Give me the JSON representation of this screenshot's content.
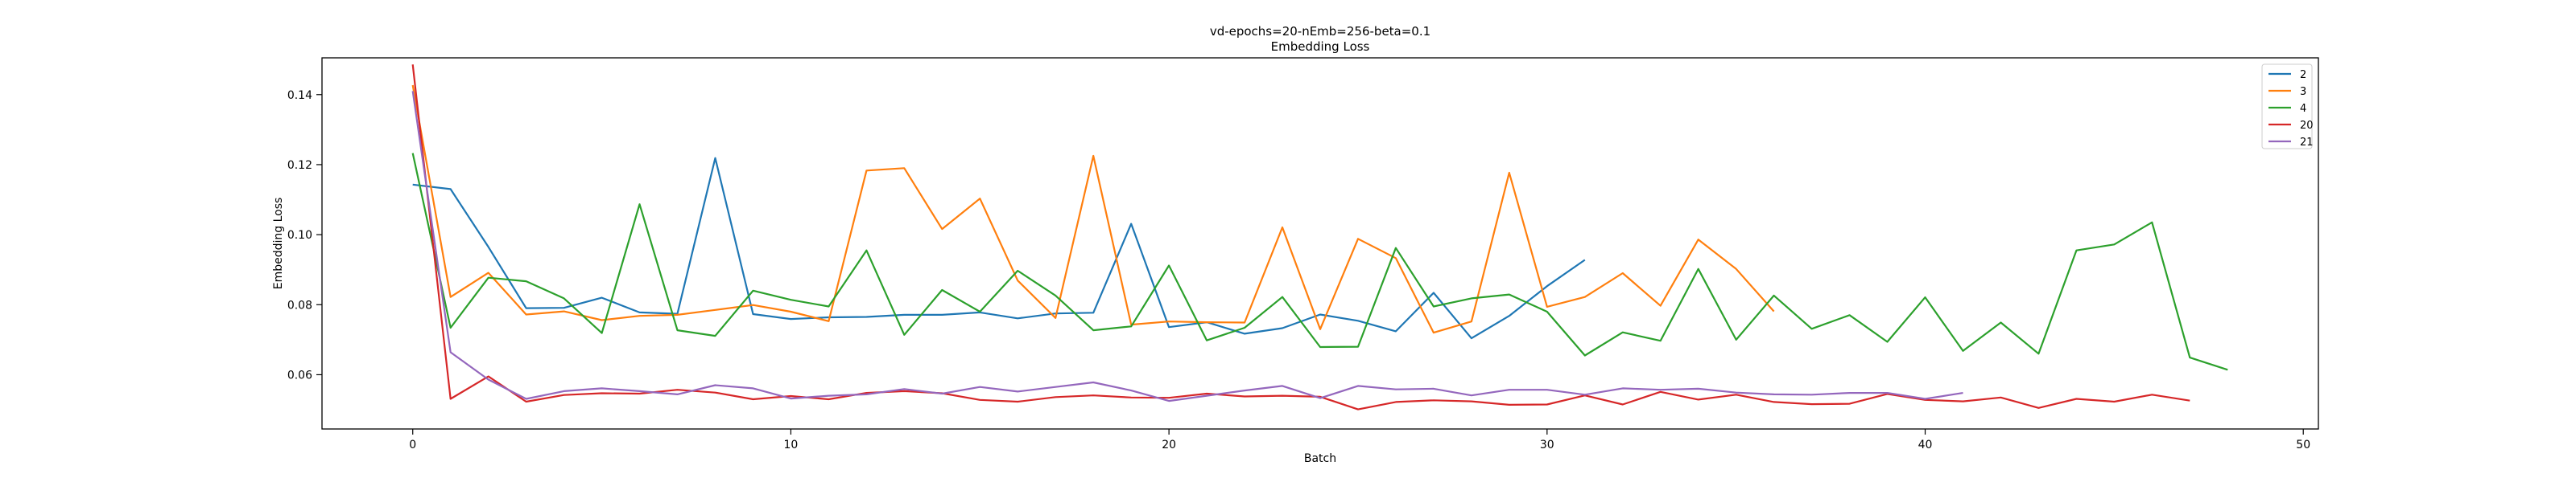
{
  "chart_data": {
    "type": "line",
    "title": "vd-epochs=20-nEmb=256-beta=0.1",
    "subtitle": "Embedding Loss",
    "xlabel": "Batch",
    "ylabel": "Embedding Loss",
    "xlim": [
      -2.4,
      50.4
    ],
    "ylim": [
      0.0445,
      0.1505
    ],
    "xticks": [
      0,
      10,
      20,
      30,
      40,
      50
    ],
    "yticks": [
      0.06,
      0.08,
      0.1,
      0.12,
      0.14
    ],
    "ytick_labels": [
      "0.06",
      "0.08",
      "0.10",
      "0.12",
      "0.14"
    ],
    "grid": false,
    "legend_position": "top-right",
    "series": [
      {
        "name": "2",
        "color": "#1f77b4",
        "values": [
          0.1143,
          0.113,
          0.0965,
          0.079,
          0.0791,
          0.082,
          0.0778,
          0.0774,
          0.1219,
          0.0773,
          0.0759,
          0.0764,
          0.0765,
          0.0771,
          0.0771,
          0.0778,
          0.0761,
          0.0775,
          0.0777,
          0.1031,
          0.0736,
          0.075,
          0.0717,
          0.0733,
          0.0772,
          0.0754,
          0.0724,
          0.0834,
          0.0704,
          0.0768,
          0.0853,
          0.0928
        ]
      },
      {
        "name": "3",
        "color": "#ff7f0e",
        "values": [
          0.1427,
          0.0822,
          0.0891,
          0.0772,
          0.0781,
          0.0756,
          0.0768,
          0.0771,
          0.0785,
          0.0799,
          0.078,
          0.0753,
          0.1183,
          0.119,
          0.1016,
          0.1103,
          0.0869,
          0.0762,
          0.1225,
          0.0743,
          0.0752,
          0.075,
          0.0749,
          0.1021,
          0.073,
          0.0988,
          0.0933,
          0.072,
          0.0752,
          0.1177,
          0.0794,
          0.0822,
          0.089,
          0.0797,
          0.0986,
          0.0902,
          0.0781
        ]
      },
      {
        "name": "4",
        "color": "#2ca02c",
        "values": [
          0.1233,
          0.0734,
          0.0877,
          0.0867,
          0.0818,
          0.0719,
          0.1087,
          0.0727,
          0.0711,
          0.084,
          0.0814,
          0.0795,
          0.0955,
          0.0714,
          0.0842,
          0.078,
          0.0897,
          0.0826,
          0.0727,
          0.0738,
          0.0912,
          0.0698,
          0.0734,
          0.0822,
          0.0679,
          0.068,
          0.0962,
          0.0795,
          0.0818,
          0.0829,
          0.078,
          0.0655,
          0.0721,
          0.0697,
          0.0902,
          0.07,
          0.0826,
          0.0731,
          0.077,
          0.0694,
          0.0821,
          0.0668,
          0.0749,
          0.066,
          0.0955,
          0.0972,
          0.1035,
          0.0649,
          0.0614
        ]
      },
      {
        "name": "20",
        "color": "#d62728",
        "values": [
          0.1486,
          0.0531,
          0.0595,
          0.0523,
          0.0542,
          0.0547,
          0.0546,
          0.0557,
          0.0549,
          0.053,
          0.0539,
          0.053,
          0.0548,
          0.0553,
          0.0547,
          0.0528,
          0.0523,
          0.0536,
          0.0541,
          0.0535,
          0.0534,
          0.0546,
          0.0538,
          0.054,
          0.0537,
          0.0501,
          0.0522,
          0.0527,
          0.0524,
          0.0514,
          0.0515,
          0.0541,
          0.0515,
          0.0551,
          0.0529,
          0.0543,
          0.0522,
          0.0516,
          0.0517,
          0.0545,
          0.0528,
          0.0524,
          0.0535,
          0.0505,
          0.0531,
          0.0523,
          0.0543,
          0.0526
        ]
      },
      {
        "name": "21",
        "color": "#9467bd",
        "values": [
          0.141,
          0.0664,
          0.0586,
          0.0531,
          0.0553,
          0.0561,
          0.0553,
          0.0544,
          0.057,
          0.0561,
          0.0532,
          0.054,
          0.0544,
          0.0559,
          0.0546,
          0.0565,
          0.0552,
          0.0565,
          0.0578,
          0.0555,
          0.0525,
          0.054,
          0.0555,
          0.0568,
          0.0533,
          0.0568,
          0.0558,
          0.056,
          0.0541,
          0.0557,
          0.0557,
          0.0543,
          0.0561,
          0.0557,
          0.056,
          0.0549,
          0.0544,
          0.0543,
          0.0548,
          0.0548,
          0.0531,
          0.0548
        ]
      }
    ]
  }
}
